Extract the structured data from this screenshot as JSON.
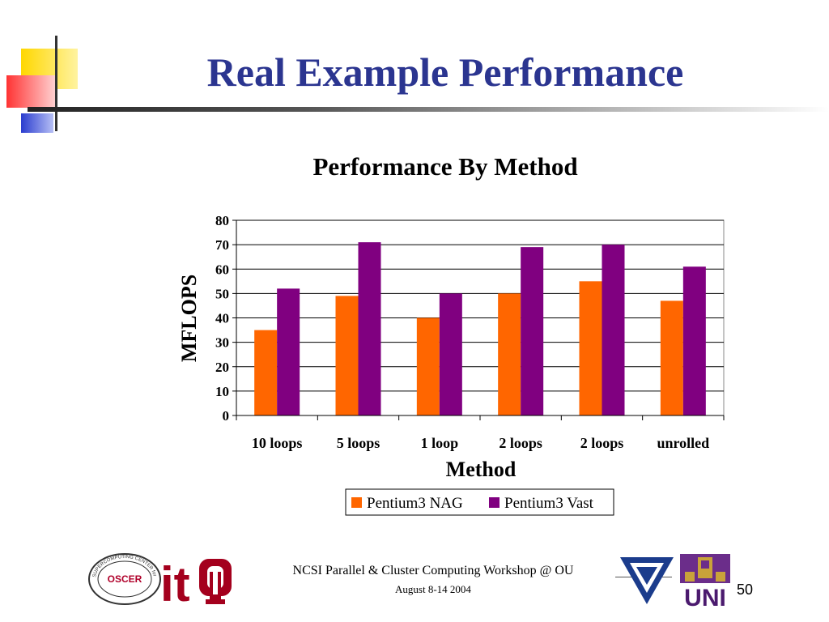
{
  "slide": {
    "title": "Real Example Performance",
    "footer_main": "NCSI Parallel & Cluster Computing Workshop @ OU",
    "footer_date": "August 8-14 2004",
    "page_number": "50"
  },
  "logos": {
    "oscer_seal_text": "SUPERCOMPUTING CENTER for EDUCATION & RESEARCH",
    "oscer_center_text": "OSCER",
    "it_text": "it",
    "uni_text": "UNI"
  },
  "colors": {
    "title": "#2b3590",
    "series1": "#ff6600",
    "series2": "#800080"
  },
  "chart_data": {
    "type": "bar",
    "title": "Performance By Method",
    "xlabel": "Method",
    "ylabel": "MFLOPS",
    "categories": [
      "10 loops",
      "5 loops",
      "1 loop",
      "2 loops",
      "2 loops",
      "unrolled"
    ],
    "series": [
      {
        "name": "Pentium3 NAG",
        "values": [
          35,
          49,
          40,
          50,
          55,
          47
        ]
      },
      {
        "name": "Pentium3 Vast",
        "values": [
          52,
          71,
          50,
          69,
          70,
          61
        ]
      }
    ],
    "ylim": [
      0,
      80
    ],
    "yticks": [
      0,
      10,
      20,
      30,
      40,
      50,
      60,
      70,
      80
    ],
    "grid": true,
    "legend": "bottom"
  }
}
